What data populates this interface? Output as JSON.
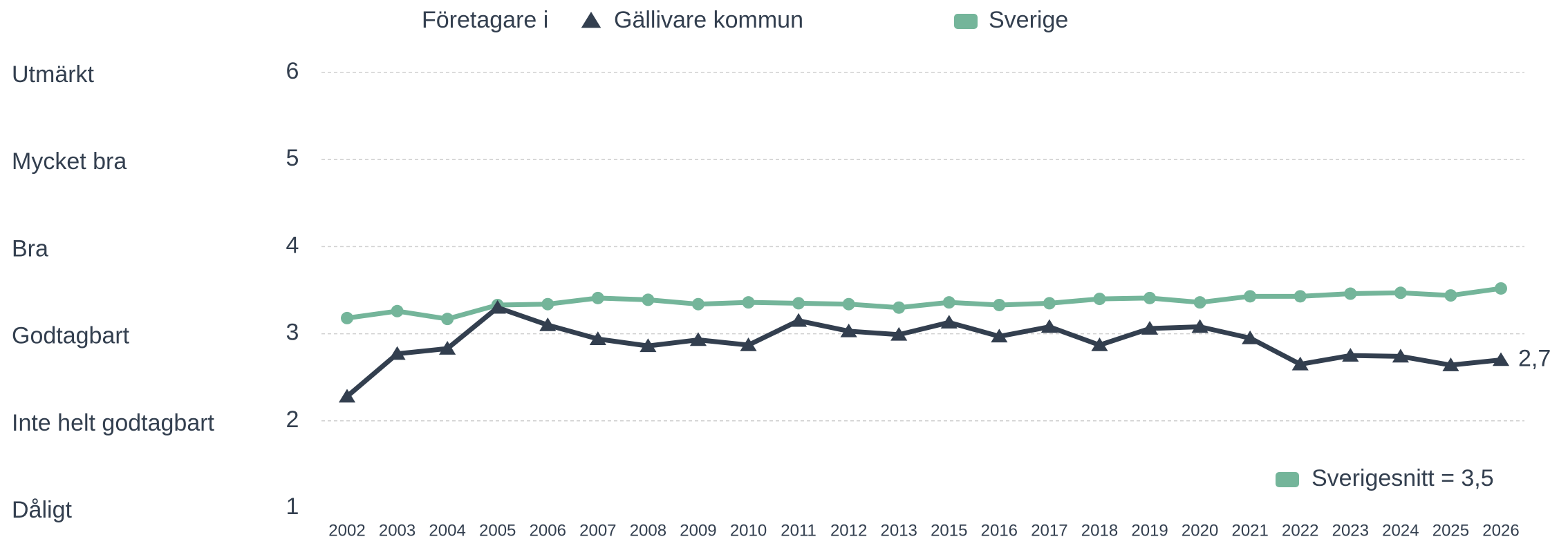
{
  "chart_data": {
    "type": "line",
    "legend_prefix": "Företagare i",
    "categories": [
      "2002",
      "2003",
      "2004",
      "2005",
      "2006",
      "2007",
      "2008",
      "2009",
      "2010",
      "2011",
      "2012",
      "2013",
      "2015",
      "2016",
      "2017",
      "2018",
      "2019",
      "2020",
      "2021",
      "2022",
      "2023",
      "2024",
      "2025",
      "2026"
    ],
    "series": [
      {
        "name": "Gällivare kommun",
        "color": "#333f4f",
        "marker": "triangle",
        "values": [
          2.28,
          2.77,
          2.83,
          3.3,
          3.1,
          2.94,
          2.86,
          2.93,
          2.87,
          3.15,
          3.03,
          2.99,
          3.13,
          2.97,
          3.08,
          2.87,
          3.06,
          3.08,
          2.95,
          2.65,
          2.75,
          2.74,
          2.64,
          2.7
        ],
        "value_labels": [
          null,
          null,
          null,
          null,
          null,
          null,
          null,
          null,
          null,
          null,
          null,
          null,
          null,
          null,
          null,
          null,
          null,
          null,
          null,
          null,
          null,
          null,
          null,
          "2,7"
        ]
      },
      {
        "name": "Sverige",
        "color": "#74b59a",
        "marker": "circle",
        "values": [
          3.18,
          3.26,
          3.17,
          3.33,
          3.34,
          3.41,
          3.39,
          3.34,
          3.36,
          3.35,
          3.34,
          3.3,
          3.36,
          3.33,
          3.35,
          3.4,
          3.41,
          3.36,
          3.43,
          3.43,
          3.46,
          3.47,
          3.44,
          3.52
        ]
      }
    ],
    "ylim": [
      1,
      6
    ],
    "yticks": [
      1,
      2,
      3,
      4,
      5,
      6
    ],
    "ytick_names": [
      "Dåligt",
      "Inte helt godtagbart",
      "Godtagbart",
      "Bra",
      "Mycket bra",
      "Utmärkt"
    ],
    "grid": true,
    "annotation": {
      "text": "Sverigesnitt = 3,5",
      "color": "#74b59a"
    }
  }
}
